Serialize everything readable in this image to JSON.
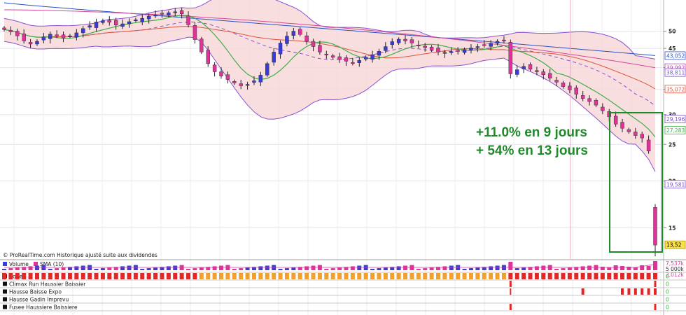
{
  "credit": "© ProRealTime.com Historique ajusté suite aux dividendes",
  "annotation": {
    "line1": "+11.0% en 9 jours",
    "line2": "+ 54% en 13 jours"
  },
  "price_axis": {
    "ticks": [
      "50",
      "45",
      "40",
      "35",
      "30",
      "25",
      "20",
      "15"
    ],
    "tags": [
      {
        "label": "43,052",
        "color": "#2b50c8"
      },
      {
        "label": "39,992",
        "color": "#c23bc2"
      },
      {
        "label": "38,811",
        "color": "#7a55cf"
      },
      {
        "label": "35,072",
        "color": "#e0533a"
      },
      {
        "label": "29,196",
        "color": "#7a55cf"
      },
      {
        "label": "27,283",
        "color": "#3fae44"
      },
      {
        "label": "19,581",
        "color": "#7a55cf"
      },
      {
        "label": "13,52",
        "color": "#000000"
      }
    ]
  },
  "volume_axis": {
    "legend_volume": "Volume",
    "legend_sma": "SMA (10)",
    "tags": [
      {
        "label": "7,537k",
        "color": "#e0339a"
      },
      {
        "label": "5 000k",
        "color": "#333333"
      },
      {
        "label": "2,012k",
        "color": "#e0339a"
      }
    ]
  },
  "indicator_panels": [
    {
      "label": "Zone",
      "value": "0"
    },
    {
      "label": "Climax Run Haussier Baissier",
      "value": "0"
    },
    {
      "label": "Hausse Baisse Expo",
      "value": "0"
    },
    {
      "label": "Hausse Gadin Imprevu",
      "value": "0"
    },
    {
      "label": "Fusee Haussiere Baissiere",
      "value": "0"
    }
  ],
  "colors": {
    "bullish_candle": "#3b3bd6",
    "bearish_candle": "#e0339a",
    "bollinger_fill": "#f7d8d8",
    "bollinger_band": "#8a4fd0",
    "sma20": "#3fae44",
    "sma50": "#e0533a",
    "sma100": "#d6479a",
    "sma200": "#2b50c8",
    "annotation_box": "#1e8a2a",
    "zone_orange": "#f0a030",
    "zone_red": "#e02828"
  },
  "chart_data": {
    "type": "candlestick",
    "y_axis_ticks": [
      15,
      20,
      25,
      30,
      35,
      40,
      45,
      50
    ],
    "y_scale": "log",
    "ylim": [
      12.5,
      60
    ],
    "series": [
      {
        "name": "SMA (10)",
        "values": []
      }
    ],
    "close_series": [
      50.5,
      49.8,
      48.6,
      47.1,
      46.2,
      47.0,
      48.3,
      49.1,
      48.7,
      47.9,
      48.6,
      49.5,
      50.8,
      51.7,
      52.9,
      53.3,
      52.8,
      51.9,
      52.3,
      53.0,
      53.6,
      54.1,
      54.8,
      55.2,
      55.6,
      56.0,
      56.3,
      55.6,
      52.0,
      47.5,
      44.0,
      41.0,
      39.0,
      38.0,
      37.2,
      36.4,
      35.8,
      36.1,
      36.9,
      38.2,
      41.0,
      44.0,
      46.5,
      48.5,
      50.0,
      49.0,
      47.0,
      45.5,
      44.0,
      43.2,
      42.6,
      42.0,
      41.6,
      41.2,
      41.8,
      42.6,
      43.3,
      44.2,
      45.5,
      46.9,
      47.6,
      47.1,
      46.5,
      45.8,
      45.2,
      44.6,
      44.0,
      43.9,
      44.1,
      44.4,
      44.7,
      45.1,
      45.5,
      45.9,
      46.4,
      47.0,
      47.3,
      38.5,
      39.5,
      40.3,
      39.6,
      39.0,
      38.3,
      37.5,
      36.6,
      35.6,
      34.9,
      34.0,
      33.1,
      32.5,
      31.8,
      30.7,
      29.6,
      28.3,
      27.6,
      27.0,
      26.4,
      26.0,
      24.0,
      13.5
    ],
    "last_price": 13.52,
    "bollinger_lower_last": 19.581,
    "bollinger_upper_last": 38.811,
    "bollinger_mid_last": 29.196,
    "sma_values_last": {
      "sma20": 27.283,
      "sma50": 35.072,
      "sma100": 39.992,
      "sma200": 43.052
    },
    "volume": {
      "sma10_last": "2,012k",
      "last": "7,537k",
      "axis_tick": "5 000k"
    }
  }
}
